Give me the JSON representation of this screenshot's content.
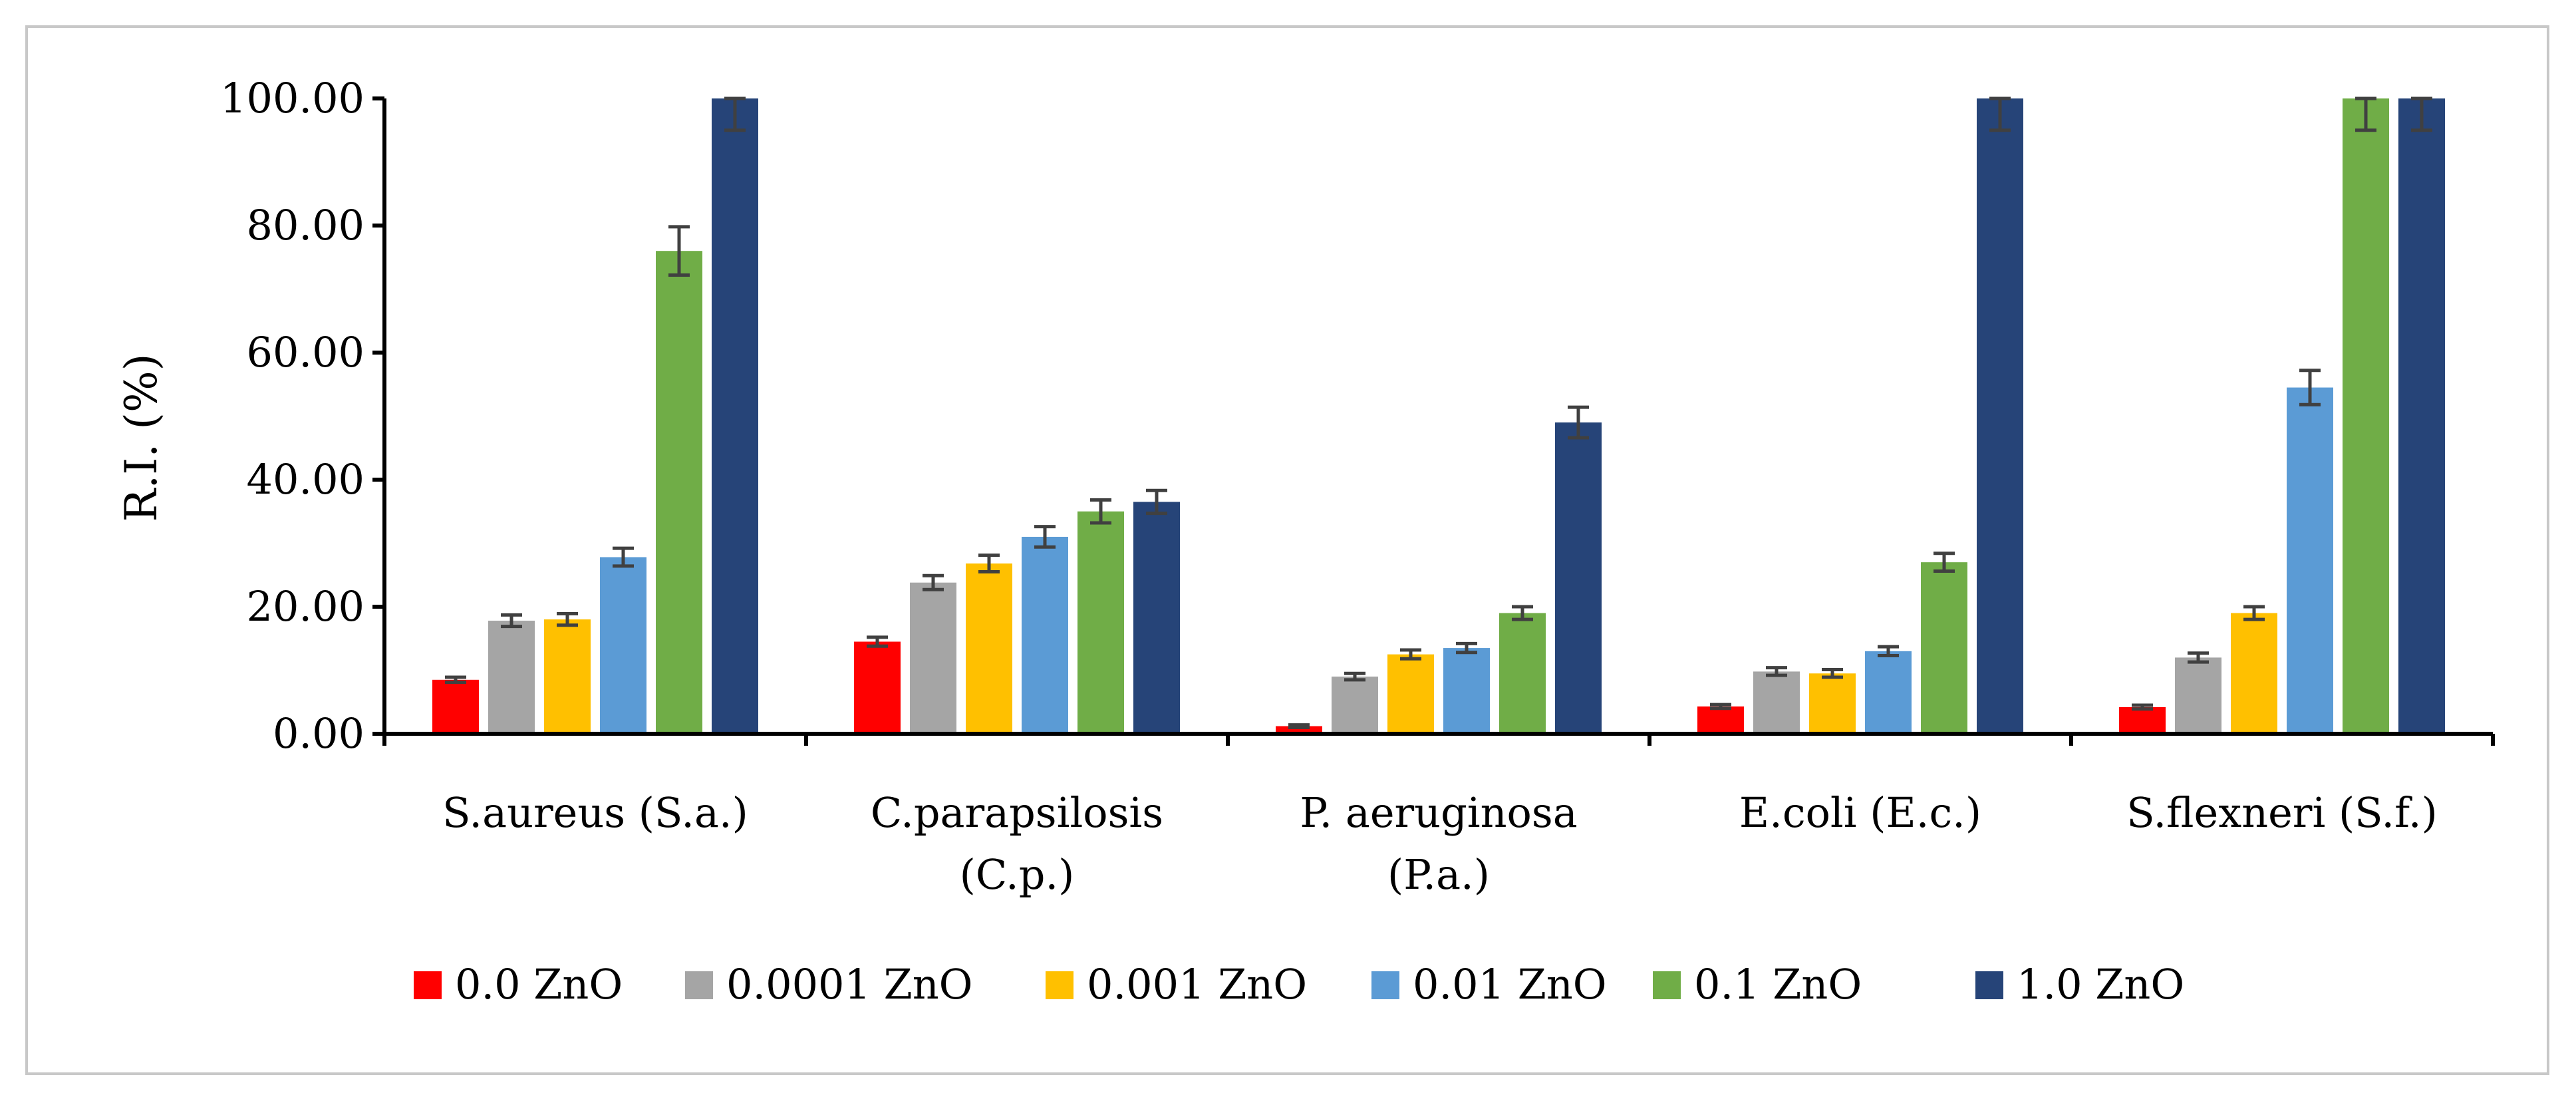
{
  "chart_data": {
    "type": "bar",
    "title": "",
    "xlabel": "",
    "ylabel": "R.I. (%)",
    "ylim": [
      0,
      100
    ],
    "y_ticks": [
      "0.00",
      "20.00",
      "40.00",
      "60.00",
      "80.00",
      "100.00"
    ],
    "y_tick_values": [
      0,
      20,
      40,
      60,
      80,
      100
    ],
    "grid": false,
    "legend_position": "bottom",
    "categories": [
      [
        "S.aureus (S.a.)"
      ],
      [
        "C.parapsilosis",
        "(C.p.)"
      ],
      [
        "P. aeruginosa",
        "(P.a.)"
      ],
      [
        "E.coli (E.c.)"
      ],
      [
        "S.flexneri (S.f.)"
      ]
    ],
    "series": [
      {
        "name": "0.0 ZnO",
        "color": "#ff0000",
        "values": [
          8.5,
          14.5,
          1.2,
          4.3,
          4.2
        ],
        "errors": [
          0.4,
          0.7,
          0.2,
          0.3,
          0.3
        ]
      },
      {
        "name": "0.0001 ZnO",
        "color": "#a5a5a5",
        "values": [
          17.8,
          23.8,
          9.0,
          9.8,
          12.0
        ],
        "errors": [
          0.9,
          1.1,
          0.5,
          0.6,
          0.7
        ]
      },
      {
        "name": "0.001 ZnO",
        "color": "#ffc000",
        "values": [
          18.0,
          26.8,
          12.5,
          9.5,
          19.0
        ],
        "errors": [
          0.9,
          1.3,
          0.7,
          0.6,
          1.0
        ]
      },
      {
        "name": "0.01 ZnO",
        "color": "#5b9bd5",
        "values": [
          27.8,
          31.0,
          13.5,
          13.0,
          54.5
        ],
        "errors": [
          1.4,
          1.6,
          0.7,
          0.7,
          2.7
        ]
      },
      {
        "name": "0.1 ZnO",
        "color": "#70ad47",
        "values": [
          76.0,
          35.0,
          19.0,
          27.0,
          100
        ],
        "errors": [
          3.8,
          1.8,
          1.0,
          1.4,
          5.0
        ]
      },
      {
        "name": "1.0 ZnO",
        "color": "#264478",
        "values": [
          100,
          36.5,
          49.0,
          100,
          100
        ],
        "errors": [
          5.0,
          1.8,
          2.4,
          5.0,
          5.0
        ]
      }
    ],
    "error_bar_color": "#404040"
  }
}
